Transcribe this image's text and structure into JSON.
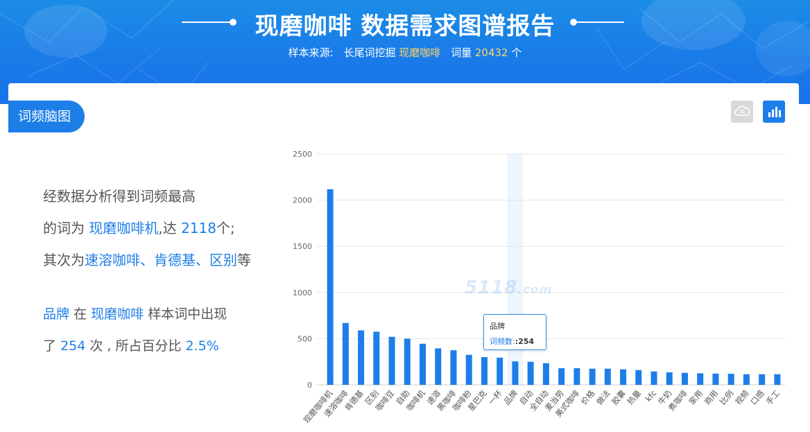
{
  "header": {
    "title": "现磨咖啡 数据需求图谱报告",
    "source_label": "样本来源:",
    "source_type": "长尾词挖掘",
    "keyword": "现磨咖啡",
    "count_label": "词量",
    "count_value": "20432",
    "count_unit": "个"
  },
  "panel": {
    "tab_label": "词频脑图",
    "buttons": {
      "cloud_icon": "cloud-icon",
      "bar_icon": "bar-chart-icon"
    }
  },
  "summary": {
    "l1": "经数据分析得到词频最高",
    "l2_pre": "的词为",
    "l2_word": "现磨咖啡机",
    "l2_mid": ",达",
    "l2_num": "2118",
    "l2_post": "个;",
    "l3_pre": "其次为",
    "l3_words": "速溶咖啡、肯德基、区别",
    "l3_post": "等"
  },
  "focus": {
    "word": "品牌",
    "in": "在",
    "keyword": "现磨咖啡",
    "tail": "样本词中出现",
    "l2_pre": "了",
    "count": "254",
    "l2_mid": "次 , 所占百分比",
    "percent": "2.5%"
  },
  "tooltip": {
    "word": "品牌",
    "label": "词频数:",
    "value": ":254"
  },
  "watermark": {
    "text": "5118",
    "suffix": ".com"
  },
  "chart_data": {
    "type": "bar",
    "categories": [
      "现磨咖啡机",
      "速溶咖啡",
      "肯德基",
      "区别",
      "咖啡豆",
      "自助",
      "咖啡机",
      "速溶",
      "黑咖啡",
      "咖啡粉",
      "星巴克",
      "一杯",
      "品牌",
      "自动",
      "全自动",
      "麦当劳",
      "美式咖啡",
      "价格",
      "做法",
      "胶囊",
      "热量",
      "kfc",
      "牛奶",
      "煮咖啡",
      "家用",
      "商用",
      "比例",
      "视频",
      "口感",
      "手工"
    ],
    "values": [
      2118,
      670,
      590,
      575,
      520,
      500,
      445,
      395,
      375,
      325,
      300,
      295,
      254,
      250,
      235,
      180,
      180,
      175,
      175,
      168,
      160,
      145,
      135,
      130,
      125,
      122,
      120,
      115,
      115,
      115
    ],
    "ylim": [
      0,
      2500
    ],
    "yticks": [
      0,
      500,
      1000,
      1500,
      2000,
      2500
    ],
    "bar_color": "#1d7ee8",
    "highlight_index": 12,
    "grid": true
  }
}
